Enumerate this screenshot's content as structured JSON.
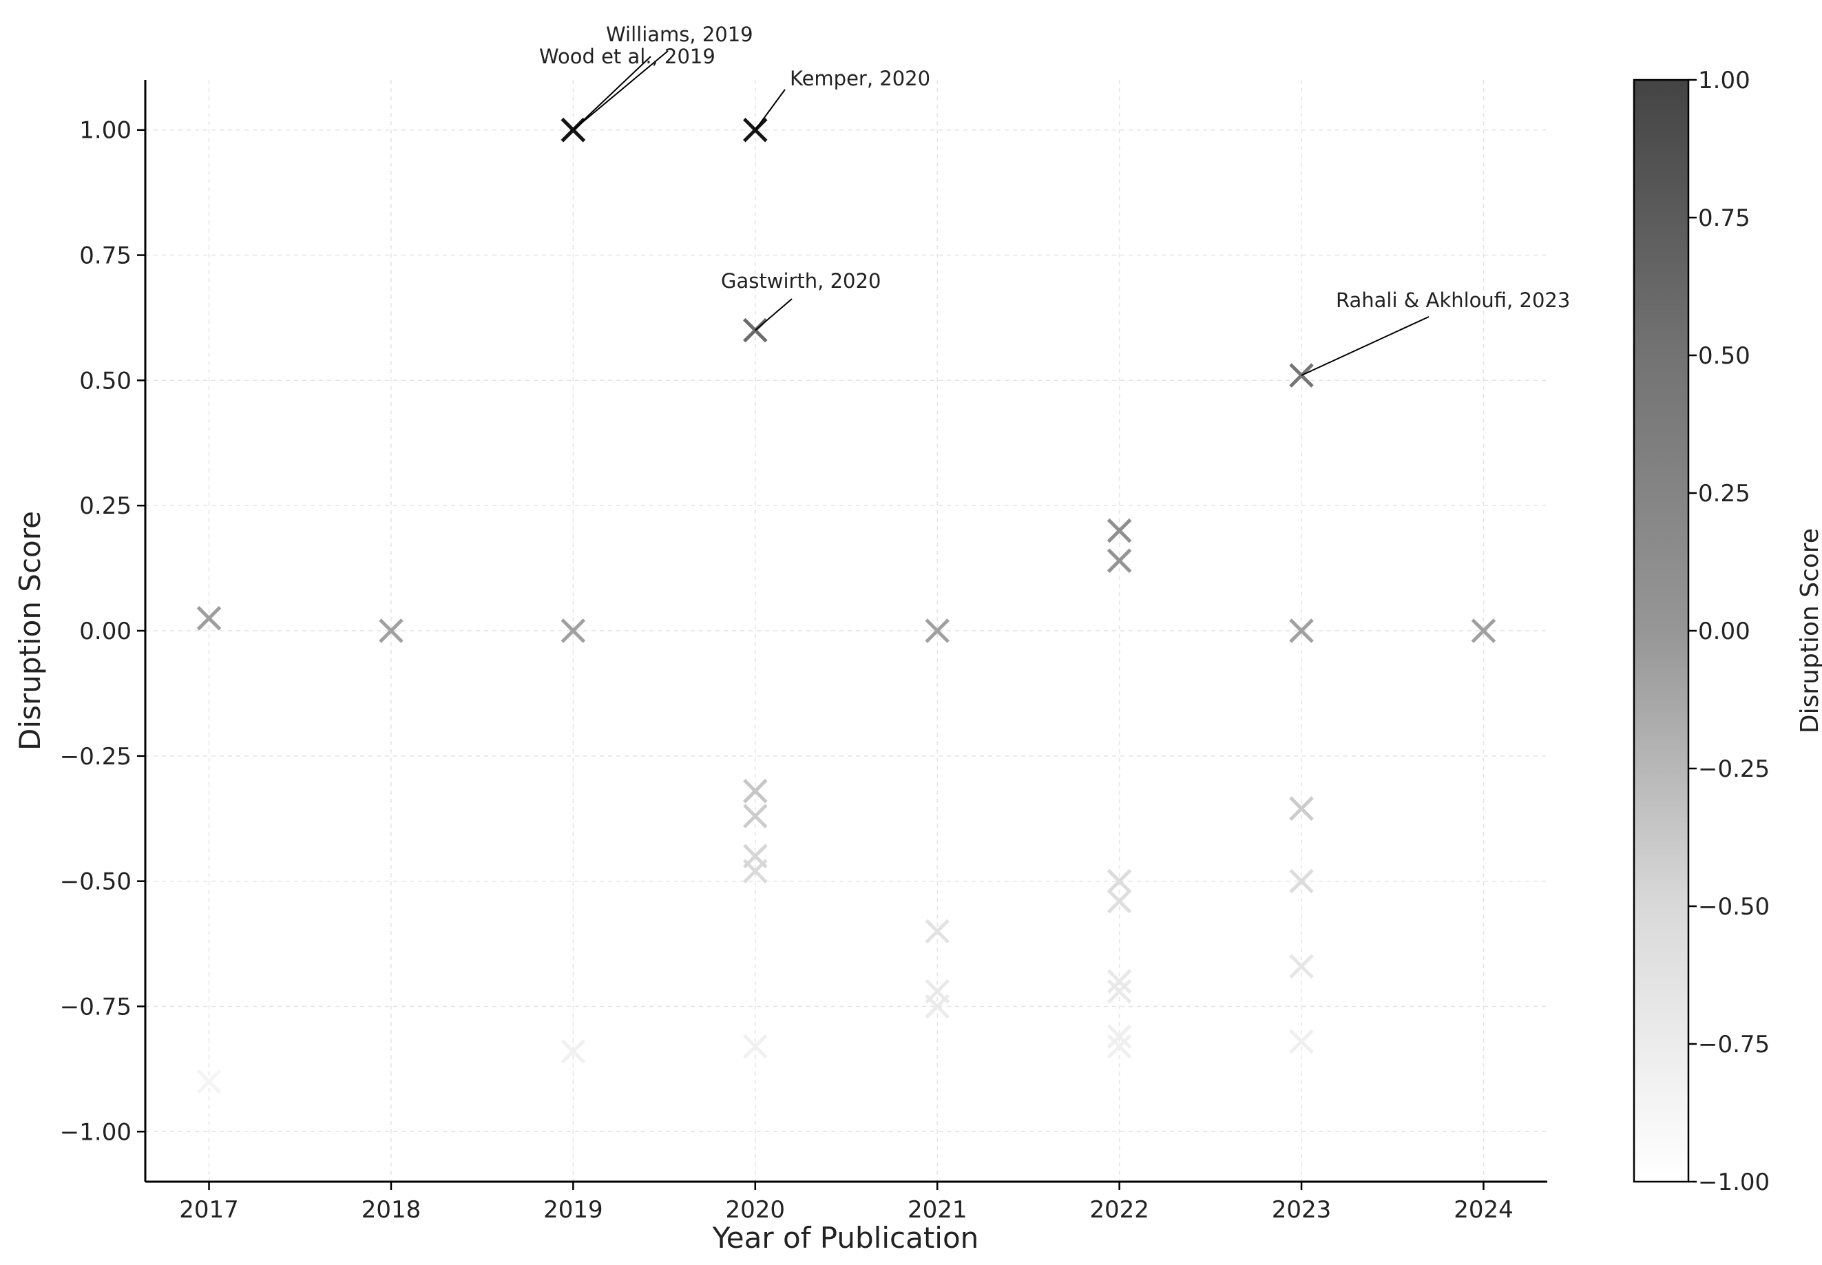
{
  "chart_data": {
    "type": "scatter",
    "title": "",
    "xlabel": "Year of Publication",
    "ylabel": "Disruption Score",
    "xlim": [
      2016.65,
      2024.35
    ],
    "ylim": [
      -1.1,
      1.1
    ],
    "xticks": [
      2017,
      2018,
      2019,
      2020,
      2021,
      2022,
      2023,
      2024
    ],
    "xtick_labels": [
      "2017",
      "2018",
      "2019",
      "2020",
      "2021",
      "2022",
      "2023",
      "2024"
    ],
    "yticks": [
      1.0,
      0.75,
      0.5,
      0.25,
      0.0,
      -0.25,
      -0.5,
      -0.75,
      -1.0
    ],
    "ytick_labels": [
      "1.00",
      "0.75",
      "0.50",
      "0.25",
      "0.00",
      "−0.25",
      "−0.50",
      "−0.75",
      "−1.00"
    ],
    "grid": true,
    "marker": "x",
    "colormap": "Greys",
    "color_range": [
      -1.0,
      1.0
    ],
    "colorbar": {
      "label": "Disruption Score",
      "ticks": [
        1.0,
        0.75,
        0.5,
        0.25,
        0.0,
        -0.25,
        -0.5,
        -0.75,
        -1.0
      ],
      "tick_labels": [
        "1.00",
        "0.75",
        "0.50",
        "0.25",
        "0.00",
        "−0.25",
        "−0.50",
        "−0.75",
        "−1.00"
      ]
    },
    "points": [
      {
        "x": 2017,
        "y": 0.025
      },
      {
        "x": 2017,
        "y": -0.9
      },
      {
        "x": 2018,
        "y": 0.0
      },
      {
        "x": 2019,
        "y": 1.0
      },
      {
        "x": 2019,
        "y": 1.0
      },
      {
        "x": 2019,
        "y": 0.0
      },
      {
        "x": 2019,
        "y": -0.84
      },
      {
        "x": 2020,
        "y": 1.0
      },
      {
        "x": 2020,
        "y": 0.6
      },
      {
        "x": 2020,
        "y": -0.32
      },
      {
        "x": 2020,
        "y": -0.37
      },
      {
        "x": 2020,
        "y": -0.45
      },
      {
        "x": 2020,
        "y": -0.48
      },
      {
        "x": 2020,
        "y": -0.83
      },
      {
        "x": 2021,
        "y": 0.0
      },
      {
        "x": 2021,
        "y": -0.6
      },
      {
        "x": 2021,
        "y": -0.72
      },
      {
        "x": 2021,
        "y": -0.75
      },
      {
        "x": 2022,
        "y": 0.2
      },
      {
        "x": 2022,
        "y": 0.14
      },
      {
        "x": 2022,
        "y": -0.5
      },
      {
        "x": 2022,
        "y": -0.54
      },
      {
        "x": 2022,
        "y": -0.7
      },
      {
        "x": 2022,
        "y": -0.72
      },
      {
        "x": 2022,
        "y": -0.81
      },
      {
        "x": 2022,
        "y": -0.83
      },
      {
        "x": 2023,
        "y": 0.51
      },
      {
        "x": 2023,
        "y": 0.0
      },
      {
        "x": 2023,
        "y": -0.355
      },
      {
        "x": 2023,
        "y": -0.5
      },
      {
        "x": 2023,
        "y": -0.67
      },
      {
        "x": 2023,
        "y": -0.82
      },
      {
        "x": 2024,
        "y": 0.0
      }
    ],
    "annotations": [
      {
        "text": "Williams, 2019",
        "x": 2019,
        "y": 1.0
      },
      {
        "text": "Wood et al., 2019",
        "x": 2019,
        "y": 1.0
      },
      {
        "text": "Kemper, 2020",
        "x": 2020,
        "y": 1.0
      },
      {
        "text": "Gastwirth, 2020",
        "x": 2020,
        "y": 0.6
      },
      {
        "text": "Rahali & Akhloufi, 2023",
        "x": 2023,
        "y": 0.51
      }
    ]
  }
}
